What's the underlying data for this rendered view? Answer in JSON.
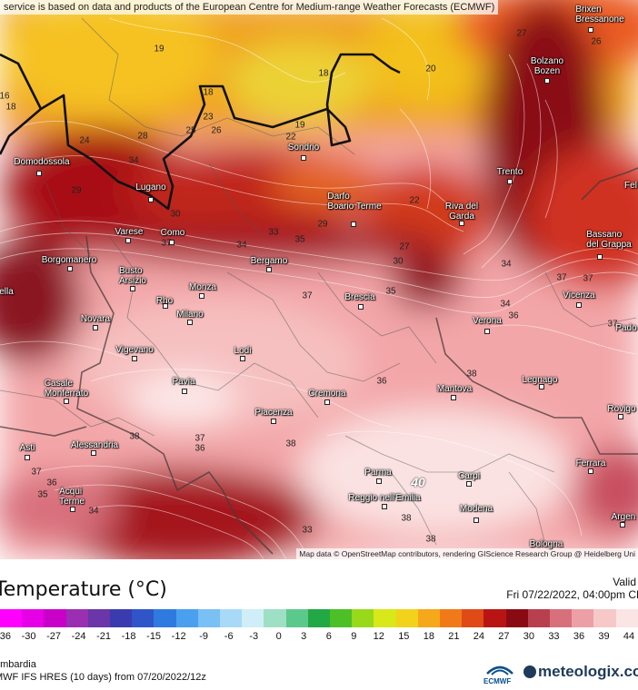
{
  "map": {
    "attribution_top": "service is based on data and products of the European Centre for Medium-range Weather Forecasts (ECMWF)",
    "attribution_bottom": "Map data © OpenStreetMap contributors, rendering GIScience Research Group @ Heidelberg Uni",
    "cities": [
      {
        "id": "brixen",
        "line1": "Brixen",
        "line2": "Bressanone"
      },
      {
        "id": "bolzano",
        "line1": "Bolzano",
        "line2": "Bozen"
      },
      {
        "id": "domodossola",
        "line1": "Domodossola",
        "line2": ""
      },
      {
        "id": "sondrio",
        "line1": "Sondrio",
        "line2": ""
      },
      {
        "id": "trento",
        "line1": "Trento",
        "line2": ""
      },
      {
        "id": "feltre",
        "line1": "Fel",
        "line2": ""
      },
      {
        "id": "lugano",
        "line1": "Lugano",
        "line2": ""
      },
      {
        "id": "darfo",
        "line1": "Darfo",
        "line2": "Boario Terme"
      },
      {
        "id": "riva",
        "line1": "Riva del",
        "line2": "Garda"
      },
      {
        "id": "varese",
        "line1": "Varese",
        "line2": ""
      },
      {
        "id": "como",
        "line1": "Como",
        "line2": ""
      },
      {
        "id": "bassano",
        "line1": "Bassano",
        "line2": "del Grappa"
      },
      {
        "id": "borgomanero",
        "line1": "Borgomanero",
        "line2": ""
      },
      {
        "id": "bergamo",
        "line1": "Bergamo",
        "line2": ""
      },
      {
        "id": "busto",
        "line1": "Busto",
        "line2": "Arsizio"
      },
      {
        "id": "biella",
        "line1": "ella",
        "line2": ""
      },
      {
        "id": "monza",
        "line1": "Monza",
        "line2": ""
      },
      {
        "id": "brescia",
        "line1": "Brescia",
        "line2": ""
      },
      {
        "id": "vicenza",
        "line1": "Vicenza",
        "line2": ""
      },
      {
        "id": "rho",
        "line1": "Rho",
        "line2": ""
      },
      {
        "id": "milano",
        "line1": "Milano",
        "line2": ""
      },
      {
        "id": "novara",
        "line1": "Novara",
        "line2": ""
      },
      {
        "id": "verona",
        "line1": "Verona",
        "line2": ""
      },
      {
        "id": "padova",
        "line1": "Pado",
        "line2": ""
      },
      {
        "id": "vigevano",
        "line1": "Vigevano",
        "line2": ""
      },
      {
        "id": "lodi",
        "line1": "Lodi",
        "line2": ""
      },
      {
        "id": "legnago",
        "line1": "Legnago",
        "line2": ""
      },
      {
        "id": "pavia",
        "line1": "Pavia",
        "line2": ""
      },
      {
        "id": "casale",
        "line1": "Casale",
        "line2": "Monferrato"
      },
      {
        "id": "cremona",
        "line1": "Cremona",
        "line2": ""
      },
      {
        "id": "mantova",
        "line1": "Mantova",
        "line2": ""
      },
      {
        "id": "rovigo",
        "line1": "Rovigo",
        "line2": ""
      },
      {
        "id": "piacenza",
        "line1": "Piacenza",
        "line2": ""
      },
      {
        "id": "alessandria",
        "line1": "Alessandria",
        "line2": ""
      },
      {
        "id": "asti",
        "line1": "Asti",
        "line2": ""
      },
      {
        "id": "ferrara",
        "line1": "Ferrara",
        "line2": ""
      },
      {
        "id": "parma",
        "line1": "Parma",
        "line2": ""
      },
      {
        "id": "carpi",
        "line1": "Carpi",
        "line2": ""
      },
      {
        "id": "acqui",
        "line1": "Acqui",
        "line2": "Terme"
      },
      {
        "id": "reggio",
        "line1": "Reggio nell'Emilia",
        "line2": ""
      },
      {
        "id": "modena",
        "line1": "Modena",
        "line2": ""
      },
      {
        "id": "argenta",
        "line1": "Argen",
        "line2": ""
      },
      {
        "id": "bologna",
        "line1": "Bologna",
        "line2": ""
      }
    ],
    "temperature_labels": [
      "27",
      "26",
      "19",
      "20",
      "18",
      "16",
      "18",
      "23",
      "25",
      "26",
      "18",
      "19",
      "22",
      "24",
      "28",
      "34",
      "29",
      "22",
      "30",
      "29",
      "33",
      "34",
      "35",
      "37",
      "37",
      "34",
      "27",
      "30",
      "37",
      "37",
      "35",
      "36",
      "34",
      "38",
      "36",
      "38",
      "38",
      "37",
      "36",
      "38",
      "40",
      "38",
      "36",
      "35",
      "34",
      "33",
      "37",
      "37"
    ],
    "max_label": "40"
  },
  "legend": {
    "title": "Temperature (°C)",
    "valid_label": "Valid",
    "valid_date": "Fri 07/22/2022, 04:00pm CE",
    "ticks": [
      "-36",
      "-30",
      "-27",
      "-24",
      "-21",
      "-18",
      "-15",
      "-12",
      "-9",
      "-6",
      "-3",
      "0",
      "3",
      "6",
      "9",
      "12",
      "15",
      "18",
      "21",
      "24",
      "27",
      "30",
      "33",
      "36",
      "39",
      "44"
    ],
    "colors": [
      "#ff00ff",
      "#e600e6",
      "#c800c8",
      "#9b2fb2",
      "#6a36a8",
      "#3b3bb0",
      "#2f55c8",
      "#2f7ae0",
      "#4aa0ee",
      "#79c0f5",
      "#a8daf7",
      "#cfeef7",
      "#9ee0c4",
      "#5cc98c",
      "#22a845",
      "#4cc026",
      "#98d91a",
      "#d8e818",
      "#f2d21a",
      "#f4a81a",
      "#f07a18",
      "#e04a16",
      "#b81414",
      "#8a0a14",
      "#b8404e",
      "#d8707c",
      "#eca0a6",
      "#f7c8c8",
      "#fbe4e4"
    ]
  },
  "footer": {
    "region": "ombardia",
    "model": "MWF IFS HRES (10 days) from 07/20/2022/12z",
    "ecmwf_logo_text": "ECMWF",
    "brand": "meteologix.co"
  }
}
